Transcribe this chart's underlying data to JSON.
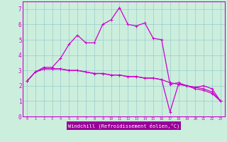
{
  "xlabel": "Windchill (Refroidissement éolien,°C)",
  "background_color": "#cceedd",
  "line_color": "#cc00cc",
  "grid_color": "#99cccc",
  "series1_y": [
    2.3,
    2.9,
    3.2,
    3.2,
    3.8,
    4.7,
    5.3,
    4.8,
    4.8,
    6.0,
    6.3,
    7.1,
    6.0,
    5.9,
    6.1,
    5.1,
    5.0,
    2.1,
    2.2,
    2.0,
    1.9,
    2.0,
    1.8,
    1.0
  ],
  "series2_y": [
    2.3,
    2.9,
    3.1,
    3.1,
    3.1,
    3.0,
    3.0,
    2.9,
    2.8,
    2.8,
    2.7,
    2.7,
    2.6,
    2.6,
    2.5,
    2.5,
    2.4,
    0.3,
    2.1,
    2.0,
    1.9,
    1.8,
    1.6,
    1.0
  ],
  "series3_y": [
    2.3,
    2.9,
    3.1,
    3.1,
    3.1,
    3.0,
    3.0,
    2.9,
    2.8,
    2.8,
    2.7,
    2.7,
    2.6,
    2.6,
    2.5,
    2.5,
    2.4,
    2.2,
    2.1,
    2.0,
    1.8,
    1.7,
    1.5,
    1.0
  ],
  "ylim": [
    0,
    7.5
  ],
  "xlim": [
    -0.5,
    23.5
  ],
  "yticks": [
    0,
    1,
    2,
    3,
    4,
    5,
    6,
    7
  ],
  "xticks": [
    0,
    1,
    2,
    3,
    4,
    5,
    6,
    7,
    8,
    9,
    10,
    11,
    12,
    13,
    14,
    15,
    16,
    17,
    18,
    19,
    20,
    21,
    22,
    23
  ],
  "xlabel_bg": "#990099",
  "xlabel_fg": "#ffffff",
  "xlabel_fontsize": 5.0,
  "ytick_fontsize": 5.5,
  "xtick_fontsize": 3.8,
  "line_width": 0.9,
  "marker_size": 3.0
}
